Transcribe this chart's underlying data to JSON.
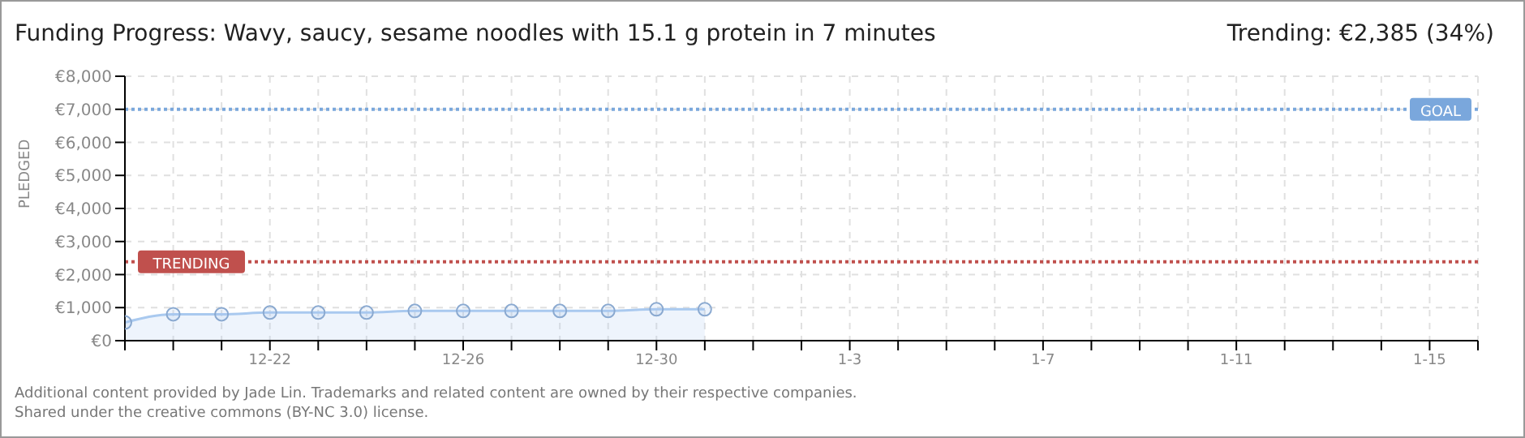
{
  "chart_data": {
    "type": "area",
    "title": "Funding Progress: Wavy, saucy, sesame noodles with 15.1 g protein in 7 minutes",
    "subtitle": "Trending:  €2,385 (34%)",
    "ylabel": "PLEDGED",
    "categories": [
      null,
      null,
      null,
      "12-22",
      null,
      null,
      null,
      "12-26",
      null,
      null,
      null,
      "12-30",
      null,
      null,
      null,
      "1-3",
      null,
      null,
      null,
      "1-7",
      null,
      null,
      null,
      "1-11",
      null,
      null,
      null,
      "1-15",
      null
    ],
    "series": [
      {
        "color": "#a9c9ef",
        "values": [
          550,
          800,
          800,
          850,
          850,
          850,
          900,
          900,
          900,
          900,
          900,
          950,
          950,
          null,
          null,
          null,
          null,
          null,
          null,
          null,
          null,
          null,
          null,
          null,
          null,
          null,
          null,
          null,
          null
        ]
      }
    ],
    "ylim": [
      0,
      8000
    ],
    "yticks": [
      {
        "value": 0,
        "label": "€0"
      },
      {
        "value": 1000,
        "label": "€1,000"
      },
      {
        "value": 2000,
        "label": "€2,000"
      },
      {
        "value": 3000,
        "label": "€3,000"
      },
      {
        "value": 4000,
        "label": "€4,000"
      },
      {
        "value": 5000,
        "label": "€5,000"
      },
      {
        "value": 6000,
        "label": "€6,000"
      },
      {
        "value": 7000,
        "label": "€7,000"
      },
      {
        "value": 8000,
        "label": "€8,000"
      }
    ],
    "ref_lines": [
      {
        "axis": "y",
        "value": 7000,
        "label": "GOAL",
        "color": "#7aa7dc",
        "line_style": "dotted"
      },
      {
        "axis": "y",
        "value": 2385,
        "label": "TRENDING",
        "color": "#c0504d",
        "line_style": "dotted"
      }
    ],
    "grid": true,
    "marker": "circle",
    "annotations": [
      "Additional content provided by Jade Lin. Trademarks and related content are owned by their respective companies.",
      "Shared under the creative commons (BY-NC 3.0) license."
    ]
  }
}
